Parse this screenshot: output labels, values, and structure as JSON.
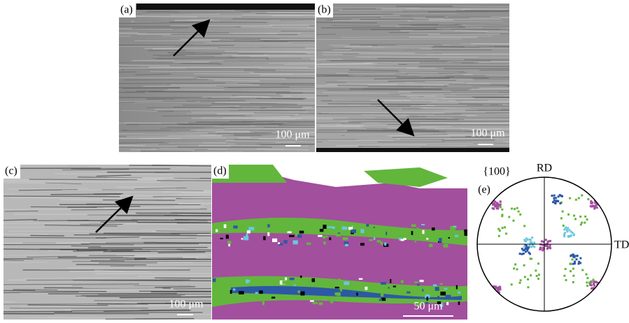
{
  "panels": [
    {
      "label": "(a)",
      "scale_bar": "100 μm"
    },
    {
      "label": "(b)",
      "scale_bar": "100 μm"
    },
    {
      "label": "(c)",
      "scale_bar": "100 μm"
    },
    {
      "label": "(d)",
      "scale_bar": "50 μm"
    },
    {
      "label": "(e)",
      "plane": "{100}",
      "axis_top": "RD",
      "axis_right": "TD"
    }
  ]
}
